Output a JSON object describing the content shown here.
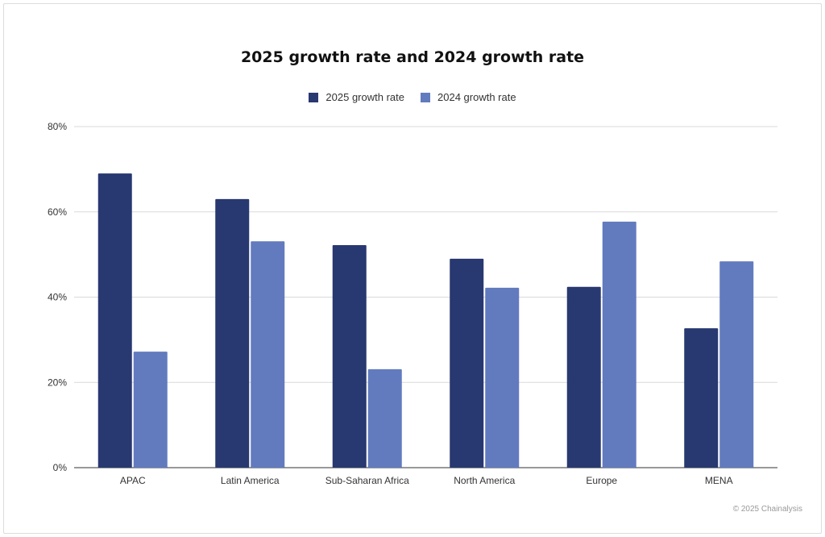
{
  "chart_data": {
    "type": "bar",
    "title": "2025 growth rate and 2024 growth rate",
    "categories": [
      "APAC",
      "Latin America",
      "Sub-Saharan Africa",
      "North America",
      "Europe",
      "MENA"
    ],
    "series": [
      {
        "name": "2025 growth rate",
        "color": "#283870",
        "values": [
          69.0,
          63.0,
          52.2,
          49.0,
          42.4,
          32.7
        ]
      },
      {
        "name": "2024 growth rate",
        "color": "#627bbf",
        "values": [
          27.2,
          53.1,
          23.1,
          42.2,
          57.7,
          48.4
        ]
      }
    ],
    "ylim": [
      0,
      80
    ],
    "yticks": [
      0,
      20,
      40,
      60,
      80
    ],
    "ytick_labels": [
      "0%",
      "20%",
      "40%",
      "60%",
      "80%"
    ],
    "grid": true,
    "legend_position": "top"
  },
  "footer": {
    "credit": "© 2025 Chainalysis"
  }
}
